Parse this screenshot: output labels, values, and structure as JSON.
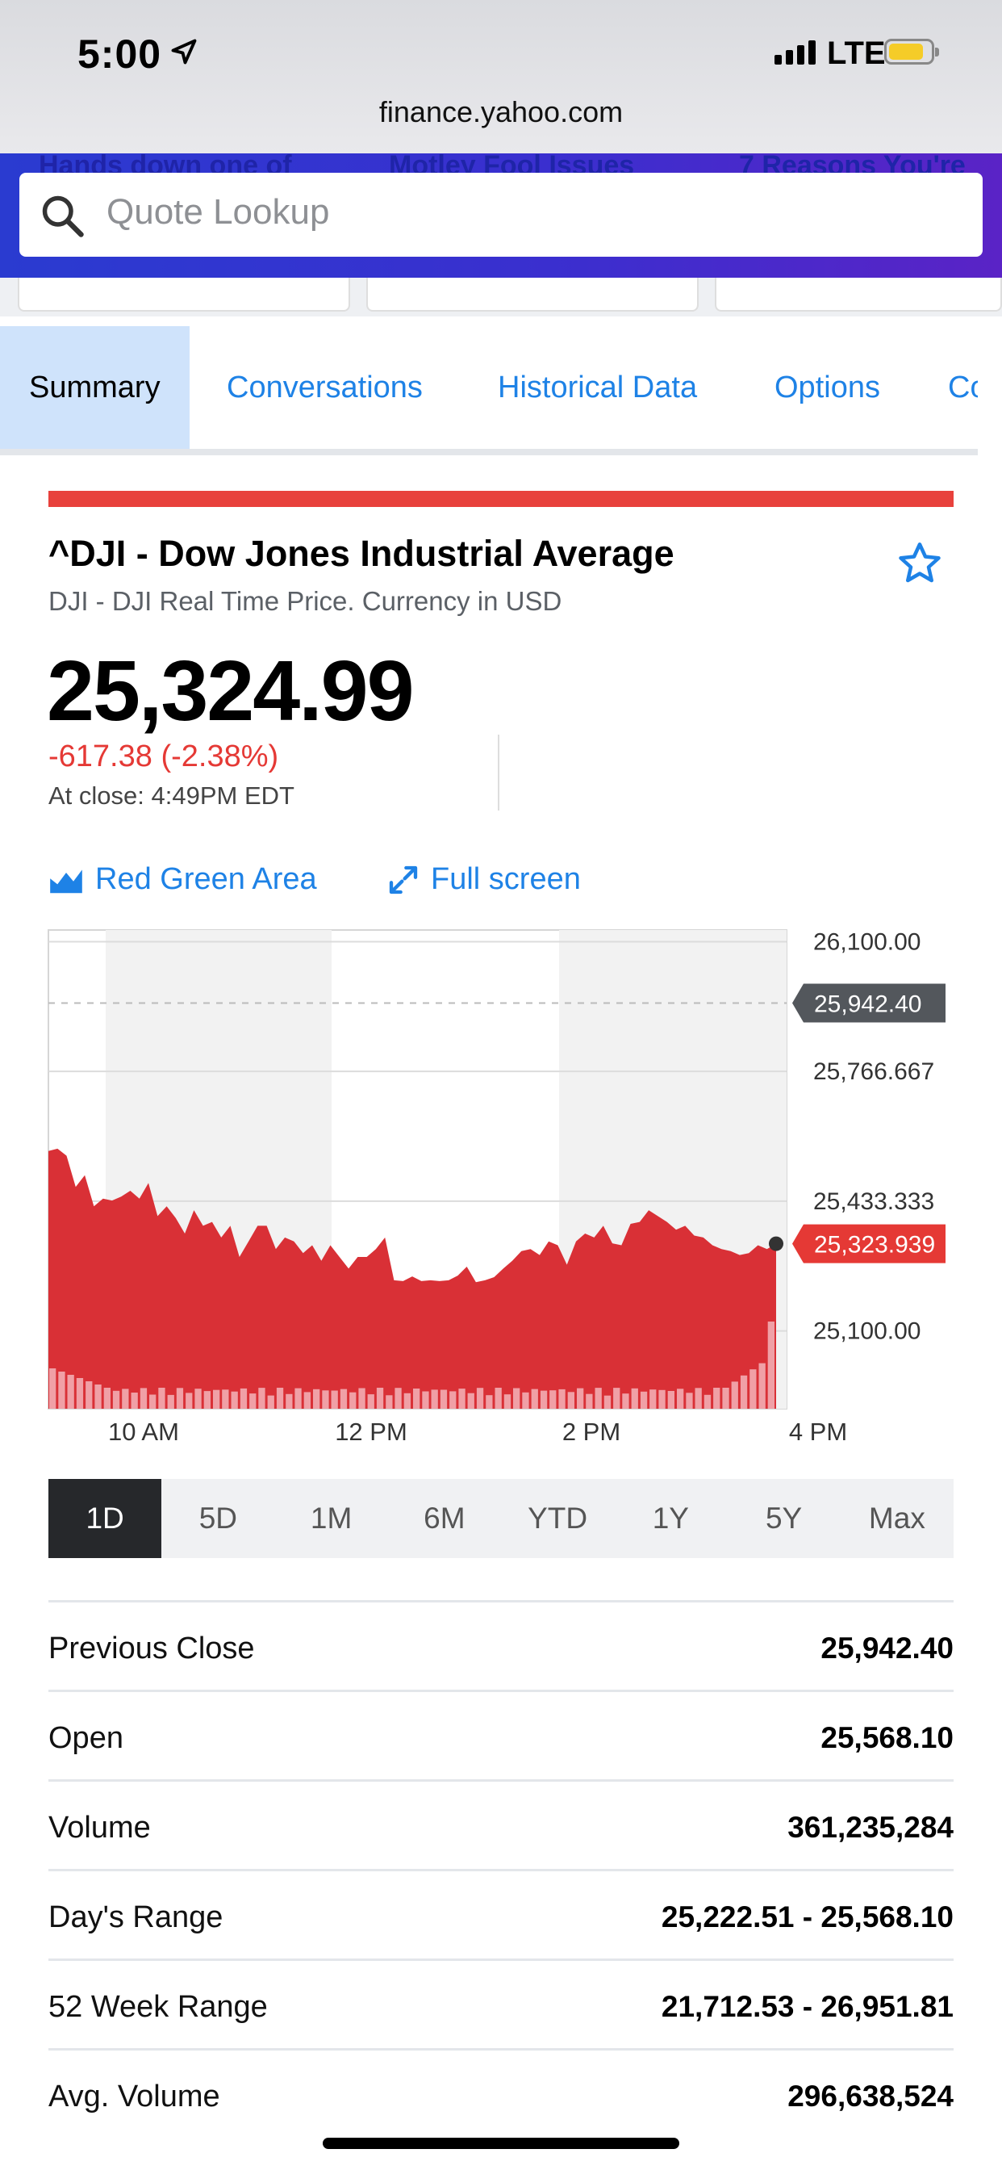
{
  "status_bar": {
    "time": "5:00",
    "network": "LTE",
    "url": "finance.yahoo.com"
  },
  "header": {
    "search_placeholder": "Quote Lookup",
    "headlines_behind": [
      "Hands down one of",
      "Motley Fool Issues",
      "7 Reasons You're"
    ]
  },
  "tabs": [
    "Summary",
    "Conversations",
    "Historical Data",
    "Options",
    "Co"
  ],
  "quote": {
    "title": "^DJI - Dow Jones Industrial Average",
    "subtitle": "DJI - DJI Real Time Price. Currency in USD",
    "price": "25,324.99",
    "change": "-617.38 (-2.38%)",
    "close_time": "At close: 4:49PM EDT"
  },
  "chart_controls": {
    "type_label": "Red Green Area",
    "fullscreen_label": "Full screen"
  },
  "chart_data": {
    "type": "area",
    "title": "",
    "xlabel": "",
    "ylabel": "",
    "x_ticks": [
      "10 AM",
      "12 PM",
      "2 PM",
      "4 PM"
    ],
    "y_ticks": [
      "26,100.00",
      "25,766.667",
      "25,433.333",
      "25,100.00"
    ],
    "ylim": [
      24900,
      26130
    ],
    "previous_close": {
      "value": 25942.4,
      "label": "25,942.40"
    },
    "last": {
      "value": 25323.939,
      "label": "25,323.939"
    },
    "series": [
      {
        "values": [
          25562,
          25568,
          25550,
          25470,
          25500,
          25420,
          25440,
          25435,
          25445,
          25460,
          25440,
          25480,
          25395,
          25420,
          25390,
          25350,
          25410,
          25370,
          25380,
          25340,
          25370,
          25290,
          25330,
          25370,
          25370,
          25310,
          25340,
          25330,
          25300,
          25320,
          25280,
          25320,
          25290,
          25260,
          25290,
          25290,
          25310,
          25340,
          25230,
          25228,
          25240,
          25228,
          25230,
          25228,
          25230,
          25242,
          25265,
          25225,
          25230,
          25238,
          25260,
          25280,
          25305,
          25310,
          25295,
          25330,
          25320,
          25270,
          25330,
          25350,
          25340,
          25370,
          25325,
          25320,
          25375,
          25380,
          25410,
          25395,
          25380,
          25360,
          25370,
          25345,
          25340,
          25320,
          25310,
          25305,
          25295,
          25300,
          25320,
          25310,
          25324
        ]
      }
    ],
    "volume_bars": 80
  },
  "ranges": [
    "1D",
    "5D",
    "1M",
    "6M",
    "YTD",
    "1Y",
    "5Y",
    "Max"
  ],
  "stats": [
    {
      "label": "Previous Close",
      "value": "25,942.40"
    },
    {
      "label": "Open",
      "value": "25,568.10"
    },
    {
      "label": "Volume",
      "value": "361,235,284"
    },
    {
      "label": "Day's Range",
      "value": "25,222.51 - 25,568.10"
    },
    {
      "label": "52 Week Range",
      "value": "21,712.53 - 26,951.81"
    },
    {
      "label": "Avg. Volume",
      "value": "296,638,524"
    }
  ],
  "colors": {
    "accent": "#1e82e6",
    "down": "#e53935",
    "area": "#d93036",
    "price_tag": "#e53935",
    "prev_close_tag": "#53575c"
  }
}
